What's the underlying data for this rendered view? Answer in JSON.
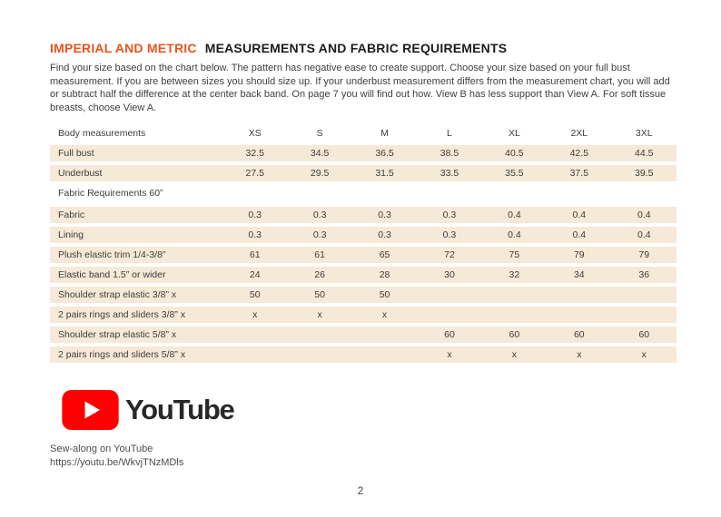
{
  "header": {
    "title_accent": "IMPERIAL AND METRIC",
    "title_main": "MEASUREMENTS AND FABRIC REQUIREMENTS",
    "intro": "Find your size based on the chart below. The pattern has negative ease to create support.  Choose your size based on your full bust measurement. If you are between sizes you should size up. If your underbust measurement differs from the measurement chart, you will add or subtract half the difference at the center back band. On page 7 you will find out how. View B has less support than View A. For soft tissue breasts, choose View A."
  },
  "table": {
    "columns": [
      "Body measurements",
      "XS",
      "S",
      "M",
      "L",
      "XL",
      "2XL",
      "3XL"
    ],
    "rows": [
      {
        "label": "Full bust",
        "type": "data",
        "values": [
          "32.5",
          "34.5",
          "36.5",
          "38.5",
          "40.5",
          "42.5",
          "44.5"
        ]
      },
      {
        "label": "Underbust",
        "type": "data",
        "values": [
          "27.5",
          "29.5",
          "31.5",
          "33.5",
          "35.5",
          "37.5",
          "39.5"
        ]
      },
      {
        "label": "Fabric Requirements 60”",
        "type": "section",
        "values": [
          "",
          "",
          "",
          "",
          "",
          "",
          ""
        ]
      },
      {
        "label": "Fabric",
        "type": "data",
        "values": [
          "0.3",
          "0.3",
          "0.3",
          "0.3",
          "0.4",
          "0.4",
          "0.4"
        ]
      },
      {
        "label": "Lining",
        "type": "data",
        "values": [
          "0.3",
          "0.3",
          "0.3",
          "0.3",
          "0.4",
          "0.4",
          "0.4"
        ]
      },
      {
        "label": "Plush elastic trim 1/4-3/8”",
        "type": "data",
        "values": [
          "61",
          "61",
          "65",
          "72",
          "75",
          "79",
          "79"
        ]
      },
      {
        "label": "Elastic band 1.5” or wider",
        "type": "data",
        "values": [
          "24",
          "26",
          "28",
          "30",
          "32",
          "34",
          "36"
        ]
      },
      {
        "label": "Shoulder strap elastic 3/8” x",
        "type": "data",
        "values": [
          "50",
          "50",
          "50",
          "",
          "",
          "",
          ""
        ]
      },
      {
        "label": "2 pairs rings and sliders 3/8” x",
        "type": "data",
        "values": [
          "x",
          "x",
          "x",
          "",
          "",
          "",
          ""
        ]
      },
      {
        "label": "Shoulder strap elastic 5/8” x",
        "type": "data",
        "values": [
          "",
          "",
          "",
          "60",
          "60",
          "60",
          "60"
        ]
      },
      {
        "label": "2 pairs rings and sliders 5/8” x",
        "type": "data",
        "values": [
          "",
          "",
          "",
          "x",
          "x",
          "x",
          "x"
        ]
      }
    ]
  },
  "youtube": {
    "play_icon": "youtube-play-icon",
    "logo_text": "YouTube",
    "caption": "Sew-along on YouTube",
    "url": "https://youtu.be/WkvjTNzMDls"
  },
  "footer": {
    "page_number": "2"
  },
  "colors": {
    "accent": "#E9551D",
    "row_bg": "#F7E9D7",
    "youtube_red": "#FF0000",
    "text": "#3B3B3B"
  }
}
